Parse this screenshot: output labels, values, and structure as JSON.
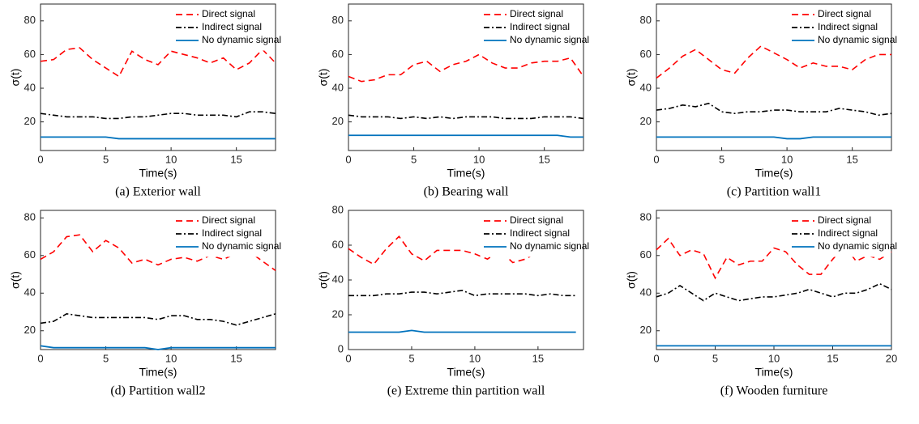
{
  "chart_data": [
    {
      "type": "line",
      "title": "(a)  Exterior wall",
      "xlabel": "Time(s)",
      "ylabel": "σ(t)",
      "legend": "upper right",
      "x": [
        0,
        1,
        2,
        3,
        4,
        5,
        6,
        7,
        8,
        9,
        10,
        11,
        12,
        13,
        14,
        15,
        16,
        17,
        18
      ],
      "xlim": [
        0,
        18
      ],
      "xticks": [
        0,
        5,
        10,
        15
      ],
      "ylim": [
        3,
        90
      ],
      "yticks": [
        20,
        40,
        60,
        80
      ],
      "series": [
        {
          "name": "Direct signal",
          "color": "#ff0000",
          "line_style": "dashed",
          "values": [
            56,
            57,
            63,
            64,
            57,
            52,
            47,
            62,
            57,
            54,
            62,
            60,
            58,
            55,
            58,
            51,
            55,
            63,
            55
          ]
        },
        {
          "name": "Indirect signal",
          "color": "#000000",
          "line_style": "dashdot",
          "values": [
            25,
            24,
            23,
            23,
            23,
            22,
            22,
            23,
            23,
            24,
            25,
            25,
            24,
            24,
            24,
            23,
            26,
            26,
            25
          ]
        },
        {
          "name": "No dynamic signal",
          "color": "#0072bd",
          "line_style": "solid",
          "values": [
            11,
            11,
            11,
            11,
            11,
            11,
            10,
            10,
            10,
            10,
            10,
            10,
            10,
            10,
            10,
            10,
            10,
            10,
            10
          ]
        }
      ]
    },
    {
      "type": "line",
      "title": "(b)  Bearing wall",
      "xlabel": "Time(s)",
      "ylabel": "σ(t)",
      "legend": "upper right",
      "x": [
        0,
        1,
        2,
        3,
        4,
        5,
        6,
        7,
        8,
        9,
        10,
        11,
        12,
        13,
        14,
        15,
        16,
        17,
        18
      ],
      "xlim": [
        0,
        18
      ],
      "xticks": [
        0,
        5,
        10,
        15
      ],
      "ylim": [
        3,
        90
      ],
      "yticks": [
        20,
        40,
        60,
        80
      ],
      "series": [
        {
          "name": "Direct signal",
          "color": "#ff0000",
          "line_style": "dashed",
          "values": [
            47,
            44,
            45,
            48,
            48,
            54,
            56,
            50,
            54,
            56,
            60,
            55,
            52,
            52,
            55,
            56,
            56,
            58,
            47
          ]
        },
        {
          "name": "Indirect signal",
          "color": "#000000",
          "line_style": "dashdot",
          "values": [
            24,
            23,
            23,
            23,
            22,
            23,
            22,
            23,
            22,
            23,
            23,
            23,
            22,
            22,
            22,
            23,
            23,
            23,
            22
          ]
        },
        {
          "name": "No dynamic signal",
          "color": "#0072bd",
          "line_style": "solid",
          "values": [
            12,
            12,
            12,
            12,
            12,
            12,
            12,
            12,
            12,
            12,
            12,
            12,
            12,
            12,
            12,
            12,
            12,
            11,
            11
          ]
        }
      ]
    },
    {
      "type": "line",
      "title": "(c)  Partition wall1",
      "xlabel": "Time(s)",
      "ylabel": "σ(t)",
      "legend": "upper right",
      "x": [
        0,
        1,
        2,
        3,
        4,
        5,
        6,
        7,
        8,
        9,
        10,
        11,
        12,
        13,
        14,
        15,
        16,
        17,
        18
      ],
      "xlim": [
        0,
        18
      ],
      "xticks": [
        0,
        5,
        10,
        15
      ],
      "ylim": [
        3,
        90
      ],
      "yticks": [
        20,
        40,
        60,
        80
      ],
      "series": [
        {
          "name": "Direct signal",
          "color": "#ff0000",
          "line_style": "dashed",
          "values": [
            46,
            52,
            59,
            63,
            57,
            51,
            49,
            58,
            65,
            61,
            57,
            52,
            55,
            53,
            53,
            51,
            57,
            60,
            60
          ]
        },
        {
          "name": "Indirect signal",
          "color": "#000000",
          "line_style": "dashdot",
          "values": [
            27,
            28,
            30,
            29,
            31,
            26,
            25,
            26,
            26,
            27,
            27,
            26,
            26,
            26,
            28,
            27,
            26,
            24,
            25
          ]
        },
        {
          "name": "No dynamic signal",
          "color": "#0072bd",
          "line_style": "solid",
          "values": [
            11,
            11,
            11,
            11,
            11,
            11,
            11,
            11,
            11,
            11,
            10,
            10,
            11,
            11,
            11,
            11,
            11,
            11,
            11
          ]
        }
      ]
    },
    {
      "type": "line",
      "title": "(d)  Partition wall2",
      "xlabel": "Time(s)",
      "ylabel": "σ(t)",
      "legend": "upper right",
      "x": [
        0,
        1,
        2,
        3,
        4,
        5,
        6,
        7,
        8,
        9,
        10,
        11,
        12,
        13,
        14,
        15,
        16,
        17,
        18
      ],
      "xlim": [
        0,
        18
      ],
      "xticks": [
        0,
        5,
        10,
        15
      ],
      "ylim": [
        10,
        84
      ],
      "yticks": [
        20,
        40,
        60,
        80
      ],
      "series": [
        {
          "name": "Direct signal",
          "color": "#ff0000",
          "line_style": "dashed",
          "values": [
            58,
            62,
            70,
            71,
            62,
            68,
            64,
            56,
            58,
            55,
            58,
            59,
            57,
            60,
            58,
            61,
            62,
            57,
            52
          ]
        },
        {
          "name": "Indirect signal",
          "color": "#000000",
          "line_style": "dashdot",
          "values": [
            24,
            25,
            29,
            28,
            27,
            27,
            27,
            27,
            27,
            26,
            28,
            28,
            26,
            26,
            25,
            23,
            25,
            27,
            29
          ]
        },
        {
          "name": "No dynamic signal",
          "color": "#0072bd",
          "line_style": "solid",
          "values": [
            12,
            11,
            11,
            11,
            11,
            11,
            11,
            11,
            11,
            10,
            11,
            11,
            11,
            11,
            11,
            11,
            11,
            11,
            11
          ]
        }
      ]
    },
    {
      "type": "line",
      "title": "(e)  Extreme thin partition wall",
      "xlabel": "Time(s)",
      "ylabel": "σ(t)",
      "legend": "upper right",
      "x": [
        0,
        1,
        2,
        3,
        4,
        5,
        6,
        7,
        8,
        9,
        10,
        11,
        12,
        13,
        14,
        15,
        16,
        17,
        18
      ],
      "xlim": [
        0,
        18.6
      ],
      "xticks": [
        0,
        5,
        10,
        15
      ],
      "ylim": [
        0,
        80
      ],
      "yticks": [
        0,
        20,
        40,
        60,
        80
      ],
      "series": [
        {
          "name": "Direct signal",
          "color": "#ff0000",
          "line_style": "dashed",
          "values": [
            58,
            53,
            49,
            58,
            65,
            55,
            51,
            57,
            57,
            57,
            55,
            52,
            57,
            50,
            52,
            56,
            55,
            57,
            60
          ]
        },
        {
          "name": "Indirect signal",
          "color": "#000000",
          "line_style": "dashdot",
          "values": [
            31,
            31,
            31,
            32,
            32,
            33,
            33,
            32,
            33,
            34,
            31,
            32,
            32,
            32,
            32,
            31,
            32,
            31,
            31
          ]
        },
        {
          "name": "No dynamic signal",
          "color": "#0072bd",
          "line_style": "solid",
          "values": [
            10,
            10,
            10,
            10,
            10,
            11,
            10,
            10,
            10,
            10,
            10,
            10,
            10,
            10,
            10,
            10,
            10,
            10,
            10
          ]
        }
      ]
    },
    {
      "type": "line",
      "title": "(f)  Wooden furniture",
      "xlabel": "Time(s)",
      "ylabel": "σ(t)",
      "legend": "upper right",
      "x": [
        0,
        1,
        2,
        3,
        4,
        5,
        6,
        7,
        8,
        9,
        10,
        11,
        12,
        13,
        14,
        15,
        16,
        17,
        18,
        19,
        20
      ],
      "xlim": [
        0,
        20
      ],
      "xticks": [
        0,
        5,
        10,
        15,
        20
      ],
      "ylim": [
        10,
        84
      ],
      "yticks": [
        20,
        40,
        60,
        80
      ],
      "series": [
        {
          "name": "Direct signal",
          "color": "#ff0000",
          "line_style": "dashed",
          "values": [
            63,
            69,
            60,
            63,
            61,
            48,
            59,
            55,
            57,
            57,
            64,
            62,
            55,
            50,
            50,
            58,
            65,
            57,
            60,
            58,
            62
          ]
        },
        {
          "name": "Indirect signal",
          "color": "#000000",
          "line_style": "dashdot",
          "values": [
            38,
            40,
            44,
            40,
            36,
            40,
            38,
            36,
            37,
            38,
            38,
            39,
            40,
            42,
            40,
            38,
            40,
            40,
            42,
            45,
            42
          ]
        },
        {
          "name": "No dynamic signal",
          "color": "#0072bd",
          "line_style": "solid",
          "values": [
            12,
            12,
            12,
            12,
            12,
            12,
            12,
            12,
            12,
            12,
            12,
            12,
            12,
            12,
            12,
            12,
            12,
            12,
            12,
            12,
            12
          ]
        }
      ]
    }
  ]
}
